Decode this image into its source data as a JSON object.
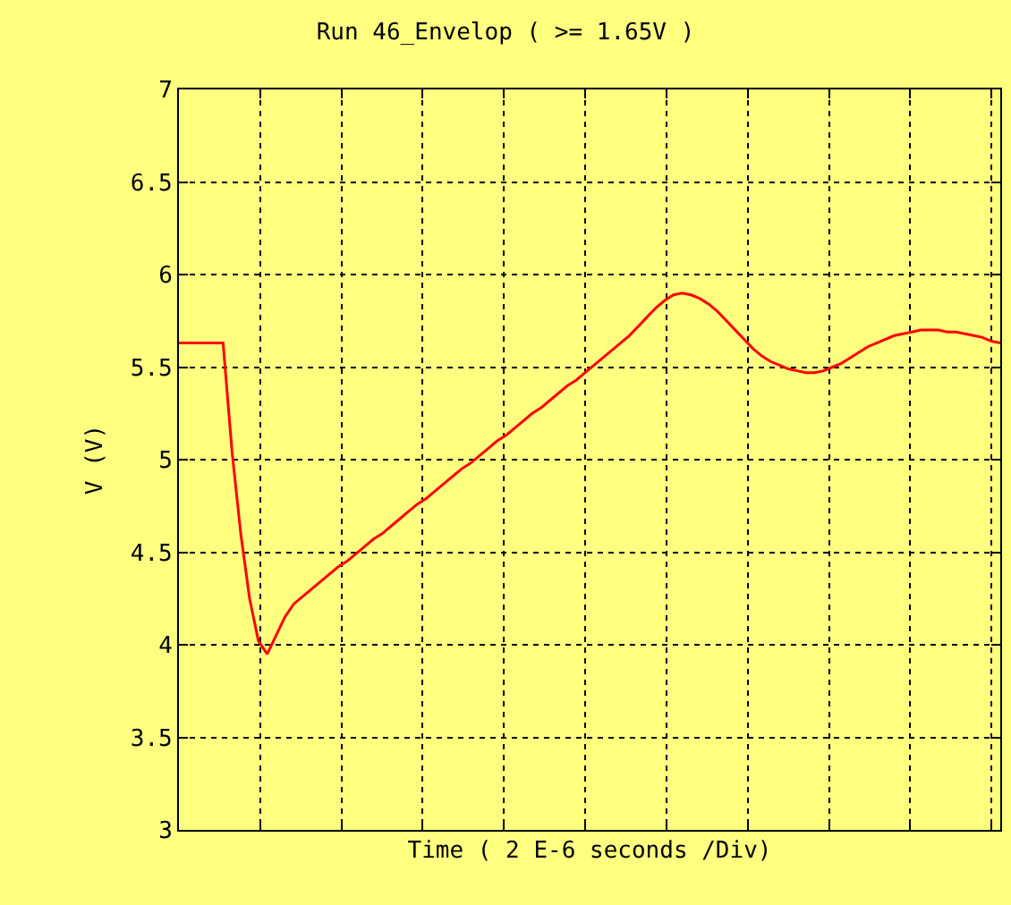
{
  "chart_data": {
    "type": "line",
    "title": "Run 46_Envelop ( >= 1.65V )",
    "xlabel": "Time ( 2 E-6 seconds /Div)",
    "ylabel": "V (V)",
    "categories": [
      null,
      null,
      null,
      null,
      null,
      null,
      null,
      null,
      null,
      null,
      null,
      null,
      null,
      null,
      null,
      null,
      null,
      null,
      null,
      null,
      null,
      null,
      null,
      null,
      null,
      null,
      null,
      null,
      null,
      null,
      null,
      null,
      null,
      null,
      null,
      null,
      null,
      null,
      null,
      null,
      null,
      null,
      null,
      null,
      null,
      null,
      null,
      null,
      null,
      null,
      null,
      null,
      null,
      null,
      null,
      null,
      null,
      null,
      null,
      null,
      null,
      null,
      null,
      null,
      null,
      null,
      null,
      null,
      null,
      null,
      null,
      null,
      null,
      null,
      null,
      null,
      null,
      null,
      null,
      null,
      null,
      null,
      null,
      null,
      null,
      null,
      null,
      null,
      null,
      null,
      null,
      null,
      null,
      null
    ],
    "series": [
      {
        "color": "#ff0000",
        "values": [
          5.63,
          5.63,
          5.63,
          5.63,
          5.63,
          5.63,
          5.05,
          4.6,
          4.25,
          4.02,
          3.95,
          4.05,
          4.15,
          4.22,
          4.26,
          4.3,
          4.34,
          4.38,
          4.42,
          4.45,
          4.49,
          4.53,
          4.57,
          4.6,
          4.64,
          4.68,
          4.72,
          4.76,
          4.79,
          4.83,
          4.87,
          4.91,
          4.95,
          4.98,
          5.02,
          5.06,
          5.1,
          5.13,
          5.17,
          5.21,
          5.25,
          5.28,
          5.32,
          5.36,
          5.4,
          5.43,
          5.47,
          5.51,
          5.55,
          5.59,
          5.63,
          5.67,
          5.72,
          5.77,
          5.82,
          5.86,
          5.89,
          5.9,
          5.89,
          5.87,
          5.84,
          5.8,
          5.75,
          5.7,
          5.65,
          5.6,
          5.56,
          5.53,
          5.51,
          5.49,
          5.48,
          5.47,
          5.47,
          5.48,
          5.5,
          5.52,
          5.55,
          5.58,
          5.61,
          5.63,
          5.65,
          5.67,
          5.68,
          5.69,
          5.7,
          5.7,
          5.7,
          5.69,
          5.69,
          5.68,
          5.67,
          5.66,
          5.64,
          5.63
        ]
      }
    ],
    "ylim": [
      3,
      7
    ],
    "yticks": [
      3,
      3.5,
      4,
      4.5,
      5,
      5.5,
      6,
      6.5,
      7
    ],
    "grid": true,
    "tick_labels": "y",
    "marker": "none",
    "line_style": "solid"
  }
}
